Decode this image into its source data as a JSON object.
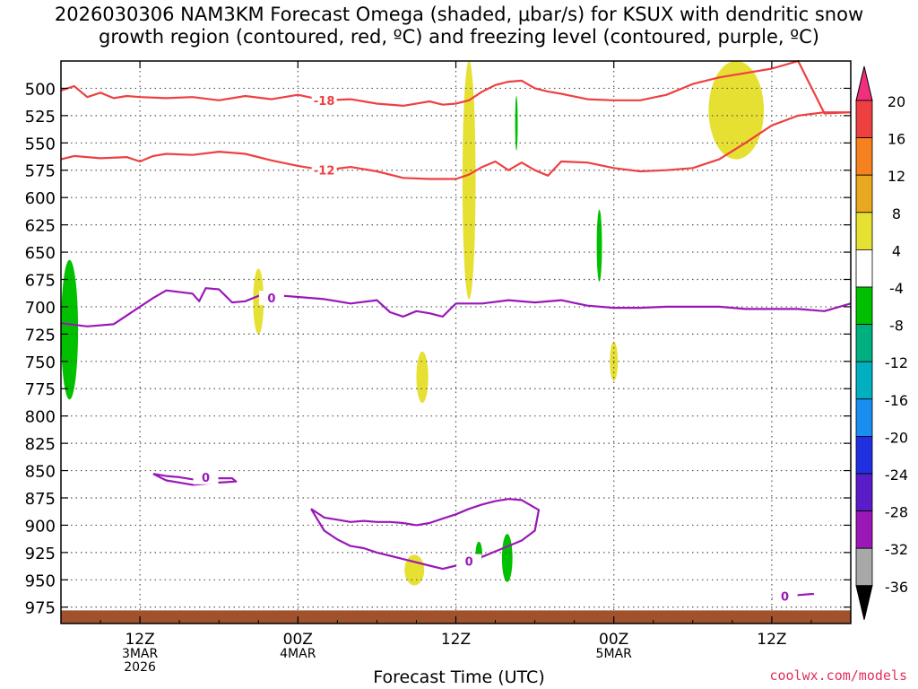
{
  "title": {
    "line1": "2026030306 NAM3KM Forecast Omega (shaded, μbar/s) for KSUX with dendritic snow",
    "line2": "growth region (contoured, red, ºC) and freezing level (contoured, purple, ºC)"
  },
  "credit": "coolwx.com/models",
  "chart_data": {
    "type": "contour",
    "title": "2026030306 NAM3KM Forecast Omega (shaded, μbar/s) for KSUX with dendritic snow growth region (contoured, red, ºC) and freezing level (contoured, purple, ºC)",
    "xlabel": "Forecast Time (UTC)",
    "ylabel": "",
    "y_axis": {
      "scale": "pressure (inverted)",
      "ylim": [
        990,
        475
      ],
      "ticks": [
        500,
        525,
        550,
        575,
        600,
        625,
        650,
        675,
        700,
        725,
        750,
        775,
        800,
        825,
        850,
        875,
        900,
        925,
        950,
        975
      ]
    },
    "x_axis": {
      "start_hour": 0,
      "end_hour": 60,
      "ticks": [
        {
          "hour": 6,
          "label": [
            "12Z",
            "3MAR",
            "2026"
          ]
        },
        {
          "hour": 18,
          "label": [
            "00Z",
            "4MAR"
          ]
        },
        {
          "hour": 30,
          "label": [
            "12Z"
          ]
        },
        {
          "hour": 42,
          "label": [
            "00Z",
            "5MAR"
          ]
        },
        {
          "hour": 54,
          "label": [
            "12Z"
          ]
        }
      ]
    },
    "grid": true,
    "colorbar": {
      "labels": [
        "20",
        "16",
        "12",
        "8",
        "4",
        "-4",
        "-8",
        "-12",
        "-16",
        "-20",
        "-24",
        "-28",
        "-32",
        "-36"
      ],
      "colors": [
        "#f0307f",
        "#ee4040",
        "#f5821f",
        "#e9a81f",
        "#e6e033",
        "#ffffff",
        "#00c000",
        "#00b080",
        "#00b0c0",
        "#1a8ef0",
        "#2030e0",
        "#5a1cc8",
        "#9a18b8",
        "#a8a8a8",
        "#000000"
      ]
    },
    "series": [
      {
        "name": "-18",
        "color": "#ee4040",
        "x": [
          0,
          1,
          2,
          3,
          4,
          5,
          6,
          8,
          10,
          12,
          14,
          16,
          18,
          20,
          22,
          24,
          26,
          28,
          29,
          30,
          31,
          32,
          33,
          34,
          35,
          36,
          37,
          38,
          40,
          42,
          44,
          46,
          48,
          50,
          52,
          54,
          56,
          58,
          60
        ],
        "y": [
          502,
          498,
          508,
          504,
          509,
          507,
          508,
          509,
          508,
          511,
          507,
          510,
          506,
          511,
          510,
          514,
          516,
          512,
          515,
          514,
          511,
          503,
          497,
          494,
          493,
          500,
          503,
          505,
          510,
          511,
          511,
          506,
          496,
          490,
          486,
          482,
          475,
          523,
          522
        ]
      },
      {
        "name": "-12",
        "color": "#ee4040",
        "x": [
          0,
          1,
          3,
          5,
          6,
          7,
          8,
          10,
          12,
          14,
          16,
          18,
          20,
          22,
          24,
          26,
          28,
          30,
          31,
          32,
          33,
          34,
          35,
          36,
          37,
          38,
          40,
          42,
          44,
          46,
          48,
          50,
          52,
          54,
          56,
          58,
          60
        ],
        "y": [
          565,
          562,
          564,
          563,
          567,
          562,
          560,
          561,
          558,
          560,
          566,
          571,
          575,
          572,
          576,
          582,
          583,
          583,
          579,
          572,
          567,
          575,
          568,
          575,
          580,
          567,
          568,
          573,
          576,
          575,
          573,
          565,
          550,
          534,
          525,
          522,
          522
        ]
      },
      {
        "name": "0",
        "color": "#9a18b8",
        "x": [
          0,
          2,
          4,
          5,
          6,
          7,
          8,
          10,
          10.5,
          11,
          12,
          13,
          14,
          15,
          16,
          17,
          18,
          20,
          22,
          24,
          25,
          26,
          27,
          28,
          29,
          30,
          32,
          34,
          36,
          38,
          40,
          42,
          44,
          46,
          48,
          50,
          52,
          54,
          56,
          58,
          60
        ],
        "y": [
          715,
          718,
          716,
          708,
          700,
          692,
          685,
          688,
          695,
          683,
          684,
          696,
          695,
          690,
          692,
          690,
          691,
          693,
          697,
          694,
          705,
          709,
          704,
          706,
          709,
          697,
          697,
          694,
          696,
          694,
          699,
          701,
          701,
          700,
          700,
          700,
          702,
          702,
          702,
          704,
          697
        ]
      },
      {
        "name": "0",
        "color": "#9a18b8",
        "x": [
          19,
          19.5,
          20,
          21,
          22,
          23,
          24,
          25,
          26,
          27,
          28,
          29,
          30,
          31,
          32,
          33,
          34,
          35,
          36,
          36.3,
          35,
          34,
          33,
          32,
          31,
          30,
          29,
          28,
          27,
          26,
          25,
          24,
          23,
          22,
          21,
          20,
          19.5,
          19
        ],
        "y": [
          885,
          895,
          905,
          913,
          919,
          921,
          925,
          928,
          931,
          934,
          937,
          940,
          937,
          933,
          929,
          924,
          919,
          914,
          905,
          886,
          877,
          876,
          878,
          881,
          885,
          890,
          894,
          898,
          900,
          898,
          897,
          897,
          896,
          897,
          895,
          893,
          889,
          885
        ]
      },
      {
        "name": "0",
        "color": "#9a18b8",
        "x": [
          7,
          8,
          9,
          10,
          11,
          12,
          13,
          13.3,
          12,
          11,
          10,
          9,
          8,
          7
        ],
        "y": [
          853,
          855,
          856,
          858,
          856,
          857,
          857,
          860,
          861,
          862,
          863,
          861,
          859,
          853
        ]
      },
      {
        "name": "0",
        "color": "#9a18b8",
        "x": [
          54,
          55,
          56,
          57,
          57.2
        ],
        "y": [
          967,
          965,
          964,
          963,
          963
        ]
      }
    ],
    "omega_regions": [
      {
        "category": "4",
        "hour_range": [
          30.5,
          31.5
        ],
        "pressure_range": [
          475,
          693
        ]
      },
      {
        "category": "4",
        "hour_range": [
          49.2,
          53.4
        ],
        "pressure_range": [
          475,
          565
        ]
      },
      {
        "category": "4",
        "hour_range": [
          14.6,
          15.4
        ],
        "pressure_range": [
          665,
          725
        ]
      },
      {
        "category": "4",
        "hour_range": [
          27.0,
          27.9
        ],
        "pressure_range": [
          741,
          788
        ]
      },
      {
        "category": "4",
        "hour_range": [
          41.7,
          42.3
        ],
        "pressure_range": [
          732,
          768
        ]
      },
      {
        "category": "4",
        "hour_range": [
          26.1,
          27.6
        ],
        "pressure_range": [
          927,
          955
        ]
      },
      {
        "category": "-4",
        "hour_range": [
          0,
          1.3
        ],
        "pressure_range": [
          657,
          785
        ]
      },
      {
        "category": "-4",
        "hour_range": [
          34.5,
          34.7
        ],
        "pressure_range": [
          507,
          557
        ]
      },
      {
        "category": "-4",
        "hour_range": [
          40.7,
          41.1
        ],
        "pressure_range": [
          611,
          677
        ]
      },
      {
        "category": "-4",
        "hour_range": [
          31.5,
          32.0
        ],
        "pressure_range": [
          915,
          937
        ]
      },
      {
        "category": "-4",
        "hour_range": [
          33.5,
          34.3
        ],
        "pressure_range": [
          908,
          952
        ]
      }
    ],
    "terrain_pressure": 978
  }
}
